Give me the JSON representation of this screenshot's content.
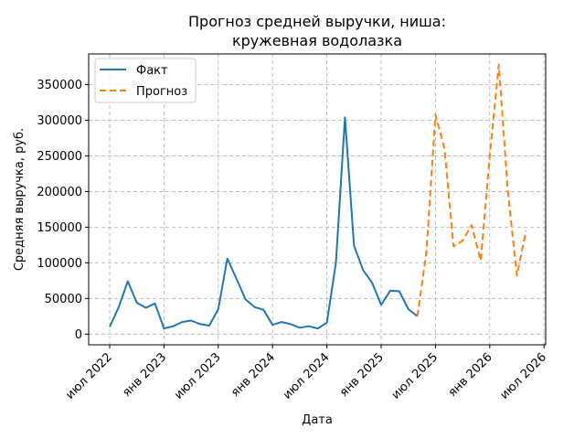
{
  "chart_data": {
    "type": "line",
    "title_line1": "Прогноз средней выручки, ниша:",
    "title_line2": "кружевная водолазка",
    "xlabel": "Дата",
    "ylabel": "Средняя выручка, руб.",
    "grid": true,
    "legend_position": "top-left",
    "x_tick_labels": [
      "июл 2022",
      "янв 2023",
      "июл 2023",
      "янв 2024",
      "июл 2024",
      "янв 2025",
      "июл 2025",
      "янв 2026",
      "июл 2026"
    ],
    "y_ticks": [
      0,
      50000,
      100000,
      150000,
      200000,
      250000,
      300000,
      350000
    ],
    "ylim": [
      -15000,
      393000
    ],
    "series": [
      {
        "name": "Факт",
        "color": "#1f77b4",
        "style": "solid",
        "points": [
          [
            "2022-07",
            10000
          ],
          [
            "2022-08",
            38000
          ],
          [
            "2022-09",
            74000
          ],
          [
            "2022-10",
            44000
          ],
          [
            "2022-11",
            37000
          ],
          [
            "2022-12",
            43000
          ],
          [
            "2023-01",
            8000
          ],
          [
            "2023-02",
            11000
          ],
          [
            "2023-03",
            17000
          ],
          [
            "2023-04",
            19000
          ],
          [
            "2023-05",
            14000
          ],
          [
            "2023-06",
            12000
          ],
          [
            "2023-07",
            35000
          ],
          [
            "2023-08",
            106000
          ],
          [
            "2023-09",
            78000
          ],
          [
            "2023-10",
            49000
          ],
          [
            "2023-11",
            38000
          ],
          [
            "2023-12",
            34000
          ],
          [
            "2024-01",
            13000
          ],
          [
            "2024-02",
            17000
          ],
          [
            "2024-03",
            14000
          ],
          [
            "2024-04",
            9000
          ],
          [
            "2024-05",
            11000
          ],
          [
            "2024-06",
            8000
          ],
          [
            "2024-07",
            16000
          ],
          [
            "2024-08",
            100000
          ],
          [
            "2024-09",
            304000
          ],
          [
            "2024-10",
            124000
          ],
          [
            "2024-11",
            90000
          ],
          [
            "2024-12",
            72000
          ],
          [
            "2025-01",
            41000
          ],
          [
            "2025-02",
            61000
          ],
          [
            "2025-03",
            60000
          ],
          [
            "2025-04",
            35000
          ],
          [
            "2025-05",
            25000
          ]
        ]
      },
      {
        "name": "Прогноз",
        "color": "#ff7f0e",
        "style": "dashed",
        "points": [
          [
            "2025-05",
            25000
          ],
          [
            "2025-06",
            115000
          ],
          [
            "2025-07",
            308000
          ],
          [
            "2025-08",
            260000
          ],
          [
            "2025-09",
            123000
          ],
          [
            "2025-10",
            131000
          ],
          [
            "2025-11",
            153000
          ],
          [
            "2025-12",
            103000
          ],
          [
            "2026-01",
            250000
          ],
          [
            "2026-02",
            378000
          ],
          [
            "2026-03",
            200000
          ],
          [
            "2026-04",
            82000
          ],
          [
            "2026-05",
            145000
          ]
        ]
      }
    ]
  }
}
